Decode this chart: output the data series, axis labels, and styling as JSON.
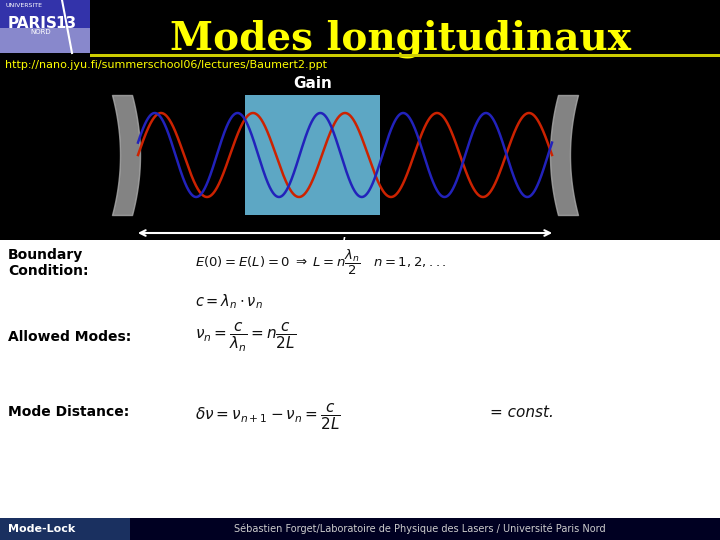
{
  "title": "Modes longitudinaux",
  "title_color": "#ffff00",
  "bg_color": "#000000",
  "white_bg": "#ffffff",
  "url_text": "http://nano.jyu.fi/summerschool06/lectures/Baumert2.ppt",
  "url_color": "#ffff00",
  "gain_label": "Gain",
  "gain_label_color": "#ffffff",
  "gain_box_color": "#6ec6e8",
  "mirror_color": "#b0b0b0",
  "arrow_color": "#ffffff",
  "wave1_color": "#cc2200",
  "wave2_color": "#2222bb",
  "boundary_label": "Boundary\nCondition:",
  "allowed_label": "Allowed Modes:",
  "mode_dist_label": "Mode Distance:",
  "const_text": "= const.",
  "footer_text": "Sébastien Forget/Laboratoire de Physique des Lasers / Université Paris Nord",
  "footer_color": "#cccccc",
  "mode_lock_text": "Mode-Lock",
  "logo_dark_bg": "#3333aa",
  "logo_light_bg": "#8888cc",
  "label_color": "#000000",
  "separator_color": "#cccc00",
  "formula_color": "#000000",
  "black_formula_color": "#111111"
}
